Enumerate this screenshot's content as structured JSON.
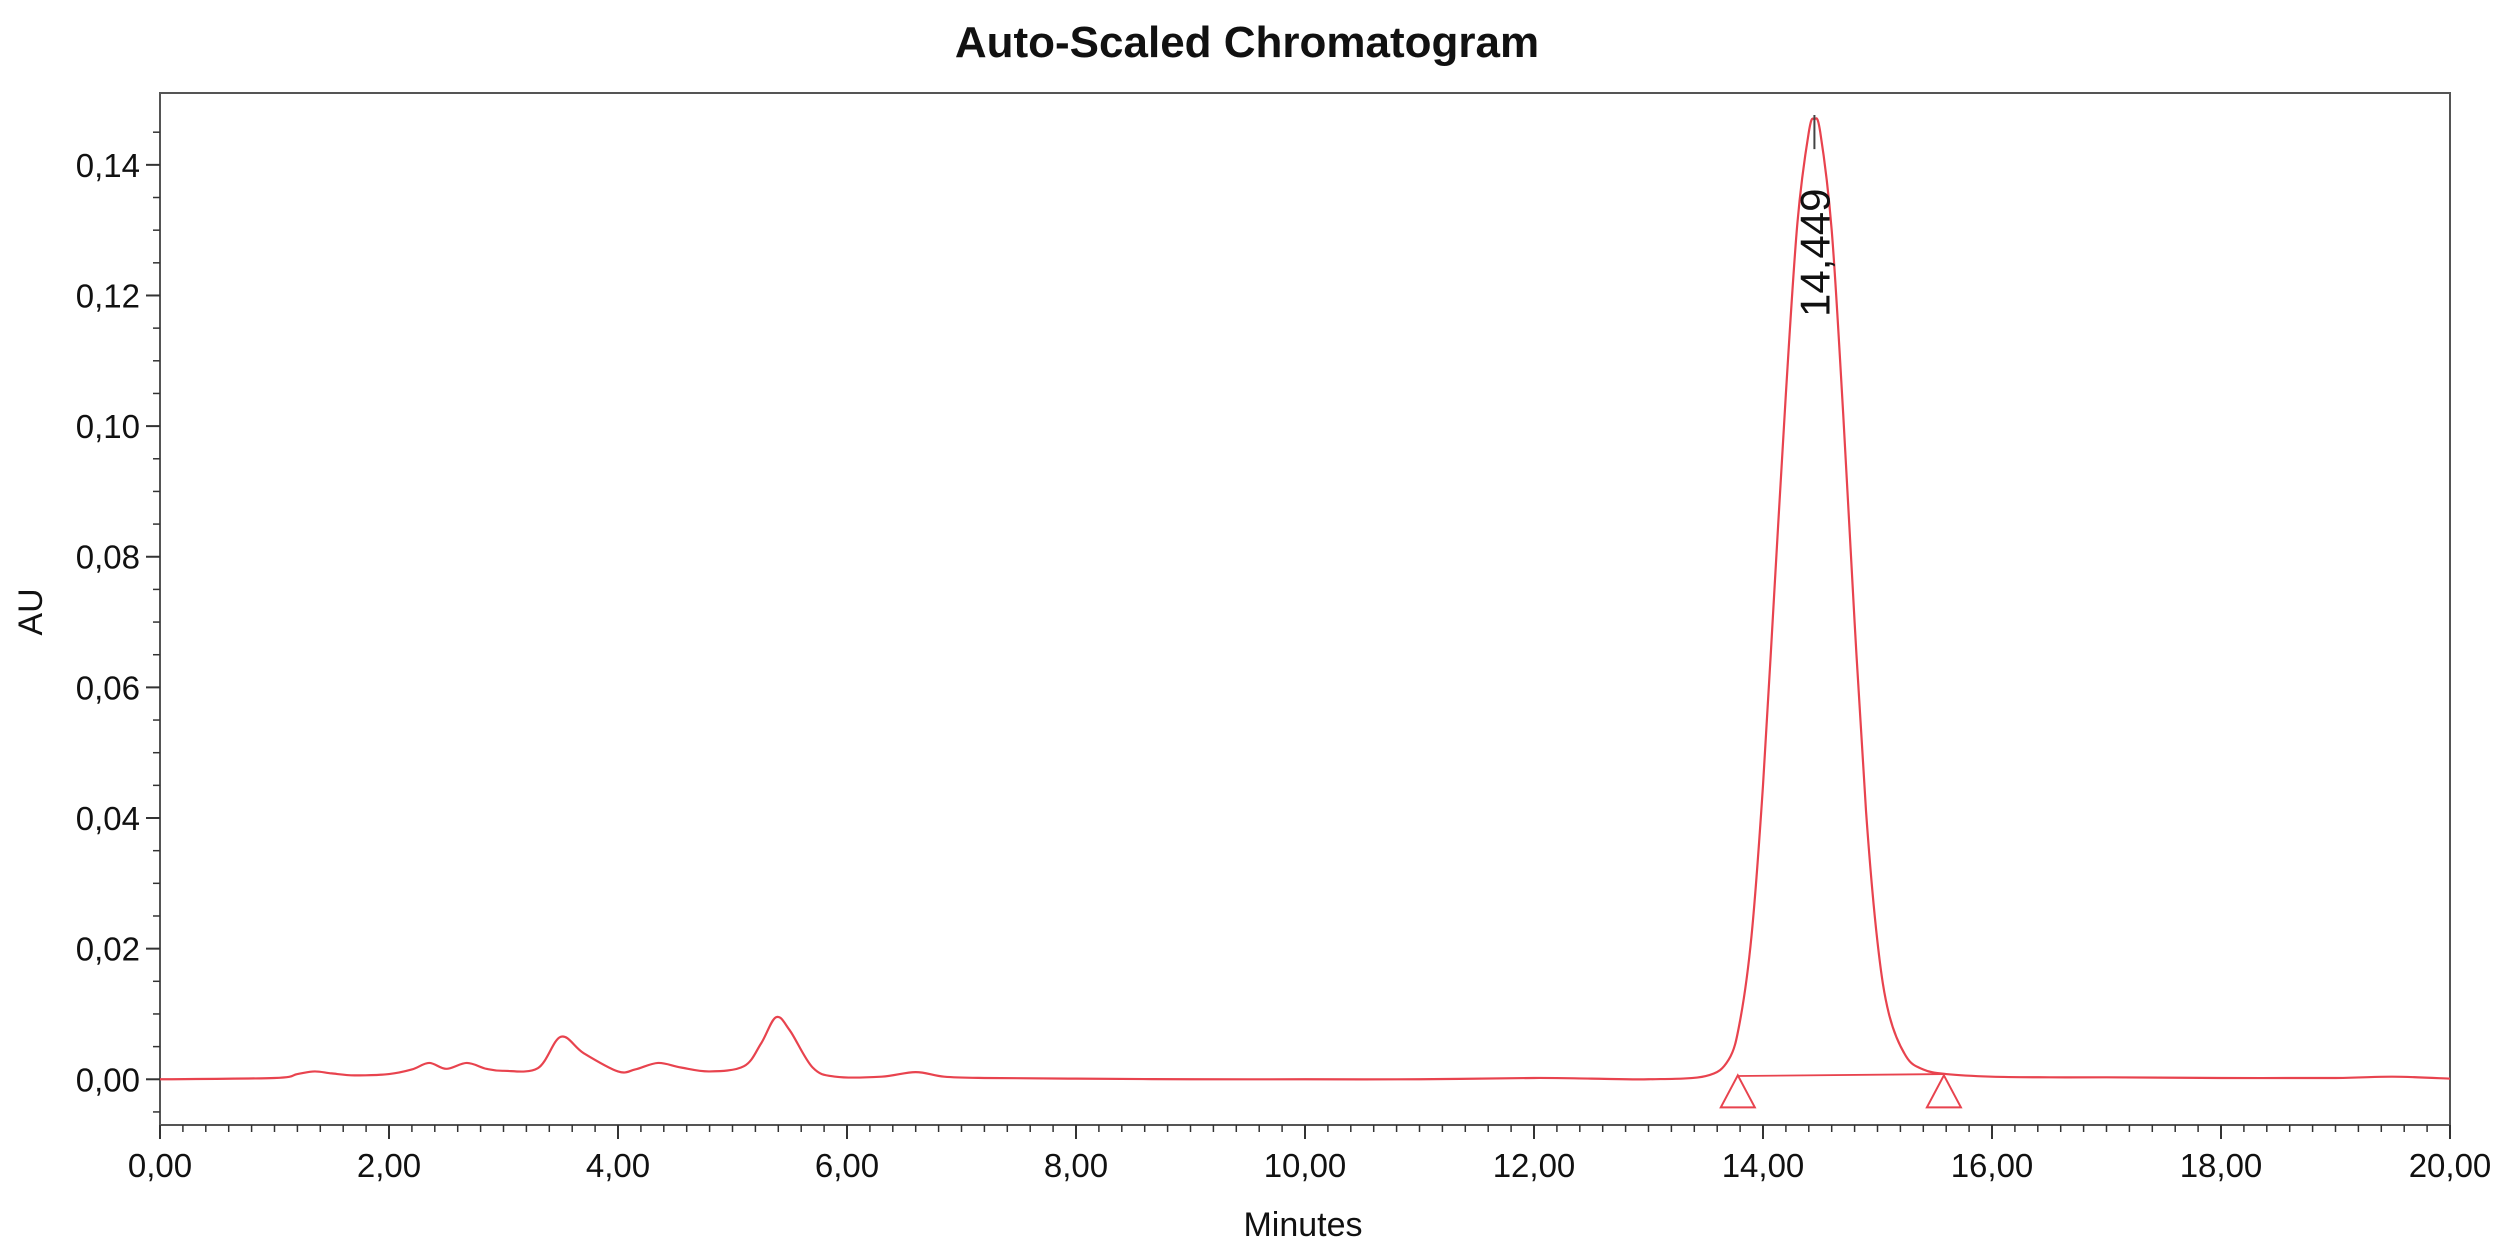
{
  "chart_data": {
    "type": "line",
    "title": "Auto-Scaled Chromatogram",
    "xlabel": "Minutes",
    "ylabel": "AU",
    "xlim": [
      0,
      20
    ],
    "ylim": [
      -0.007,
      0.151
    ],
    "x_ticks": [
      0,
      2,
      4,
      6,
      8,
      10,
      12,
      14,
      16,
      18,
      20
    ],
    "x_tick_labels": [
      "0,00",
      "2,00",
      "4,00",
      "6,00",
      "8,00",
      "10,00",
      "12,00",
      "14,00",
      "16,00",
      "18,00",
      "20,00"
    ],
    "y_ticks": [
      0,
      0.02,
      0.04,
      0.06,
      0.08,
      0.1,
      0.12,
      0.14
    ],
    "y_tick_labels": [
      "0,00",
      "0,02",
      "0,04",
      "0,06",
      "0,08",
      "0,10",
      "0,12",
      "0,14"
    ],
    "grid": false,
    "series": [
      {
        "color": "#e8434e",
        "x": [
          0,
          1.0,
          1.2,
          1.35,
          1.5,
          1.7,
          2.0,
          2.2,
          2.35,
          2.5,
          2.68,
          2.85,
          3.0,
          3.3,
          3.5,
          3.7,
          4.0,
          4.15,
          4.35,
          4.55,
          4.8,
          5.1,
          5.25,
          5.38,
          5.5,
          5.7,
          5.9,
          6.3,
          6.6,
          6.85,
          7.2,
          8.0,
          9.0,
          10.0,
          11.0,
          12.0,
          12.5,
          13.0,
          13.5,
          13.7,
          13.8,
          13.9,
          14.0,
          14.1,
          14.2,
          14.3,
          14.4,
          14.449,
          14.5,
          14.6,
          14.7,
          14.8,
          14.9,
          15.0,
          15.1,
          15.25,
          15.4,
          15.6,
          16.0,
          16.5,
          17.0,
          18.0,
          19.0,
          19.5,
          20.0
        ],
        "values": [
          0,
          0.0002,
          0.0008,
          0.0012,
          0.0009,
          0.0006,
          0.0008,
          0.0015,
          0.0025,
          0.0016,
          0.0025,
          0.0016,
          0.0013,
          0.0017,
          0.0065,
          0.004,
          0.0012,
          0.0015,
          0.0025,
          0.0018,
          0.0012,
          0.002,
          0.0055,
          0.0095,
          0.0075,
          0.0018,
          0.0004,
          0.0004,
          0.0011,
          0.0004,
          0.0002,
          0.0001,
          0.0,
          0.0,
          0.0,
          0.0002,
          0.0001,
          0.0,
          0.0005,
          0.003,
          0.009,
          0.022,
          0.045,
          0.075,
          0.105,
          0.131,
          0.145,
          0.147,
          0.145,
          0.13,
          0.102,
          0.07,
          0.041,
          0.021,
          0.01,
          0.0035,
          0.0015,
          0.0008,
          0.0004,
          0.0003,
          0.0003,
          0.0002,
          0.0002,
          0.0004,
          0.0001
        ]
      }
    ],
    "baselines": [
      {
        "x": [
          13.78,
          15.58
        ],
        "values": [
          0.0005,
          0.0008
        ],
        "color": "#e8434e"
      }
    ],
    "peak_markers": [
      {
        "x": 13.78,
        "y": -0.002,
        "shape": "triangle",
        "color": "#e8434e"
      },
      {
        "x": 15.58,
        "y": -0.002,
        "shape": "triangle",
        "color": "#e8434e"
      }
    ],
    "annotations": [
      {
        "text": "14,449",
        "x": 14.449,
        "y": 0.147,
        "orientation": "vertical"
      }
    ],
    "colors": {
      "trace": "#e8434e",
      "axis": "#333333",
      "marker_line": "#444444"
    }
  }
}
